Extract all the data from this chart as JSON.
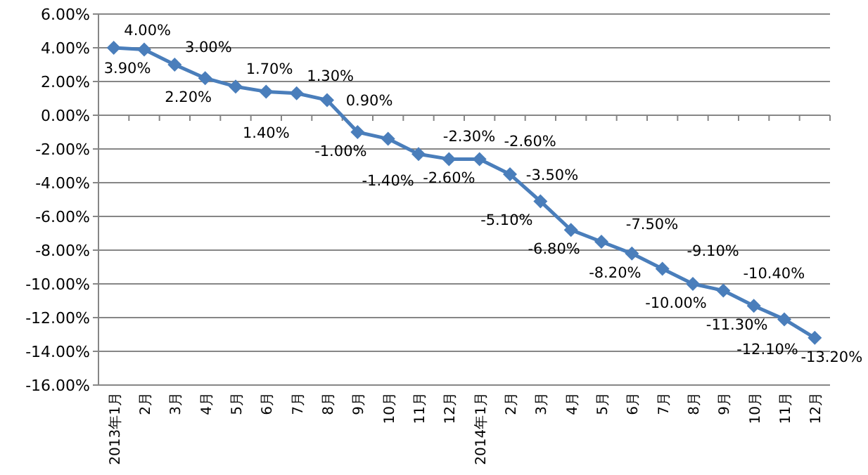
{
  "chart_data": {
    "type": "line",
    "categories": [
      "2013年1月",
      "2月",
      "3月",
      "4月",
      "5月",
      "6月",
      "7月",
      "8月",
      "9月",
      "10月",
      "11月",
      "12月",
      "2014年1月",
      "2月",
      "3月",
      "4月",
      "5月",
      "6月",
      "7月",
      "8月",
      "9月",
      "10月",
      "11月",
      "12月"
    ],
    "series": [
      {
        "color": "#4a7ebb",
        "values": [
          4.0,
          3.9,
          3.0,
          2.2,
          1.7,
          1.4,
          1.3,
          0.9,
          -1.0,
          -1.4,
          -2.3,
          -2.6,
          -2.6,
          -3.5,
          -5.1,
          -6.8,
          -7.5,
          -8.2,
          -9.1,
          -10.0,
          -10.4,
          -11.3,
          -12.1,
          -13.2
        ],
        "value_labels": [
          "4.00%",
          "3.90%",
          "3.00%",
          "2.20%",
          "1.70%",
          "1.40%",
          "1.30%",
          "0.90%",
          "-1.00%",
          "-1.40%",
          "-2.30%",
          "-2.60%",
          "-2.60%",
          "-3.50%",
          "-5.10%",
          "-6.80%",
          "-7.50%",
          "-8.20%",
          "-9.10%",
          "-10.00%",
          "-10.40%",
          "-11.30%",
          "-12.10%",
          "-13.20%"
        ]
      }
    ],
    "ylim": [
      -16,
      6
    ],
    "yticks": [
      {
        "value": 6,
        "label": "6.00%"
      },
      {
        "value": 4,
        "label": "4.00%"
      },
      {
        "value": 2,
        "label": "2.00%"
      },
      {
        "value": 0,
        "label": "0.00%"
      },
      {
        "value": -2,
        "label": "-2.00%"
      },
      {
        "value": -4,
        "label": "-4.00%"
      },
      {
        "value": -6,
        "label": "-6.00%"
      },
      {
        "value": -8,
        "label": "-8.00%"
      },
      {
        "value": -10,
        "label": "-10.00%"
      },
      {
        "value": -12,
        "label": "-12.00%"
      },
      {
        "value": -14,
        "label": "-14.00%"
      },
      {
        "value": -16,
        "label": "-16.00%"
      }
    ],
    "grid": "y",
    "marker": "diamond",
    "line_style": "solid",
    "legend": false
  }
}
